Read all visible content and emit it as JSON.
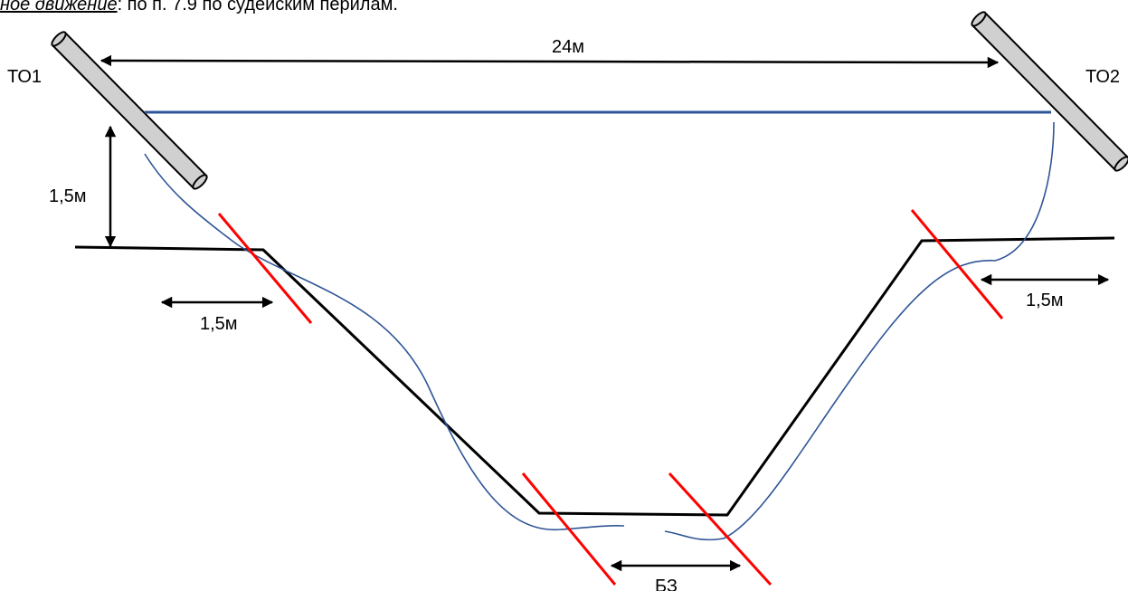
{
  "header": {
    "italic_text": "ное движение",
    "rest_text": ": по п. 7.9 по судейским перилам."
  },
  "labels": {
    "stage_left": "ТО1",
    "stage_right": "ТО2",
    "span": "24м",
    "height_left": "1,5м",
    "zone_left": "1,5м",
    "zone_right": "1,5м",
    "safety_zone": "БЗ"
  },
  "colors": {
    "terrain": "#000000",
    "rope": "#2f5597",
    "zone_marker": "#ff0000",
    "support_fill": "#d0d0d0"
  }
}
